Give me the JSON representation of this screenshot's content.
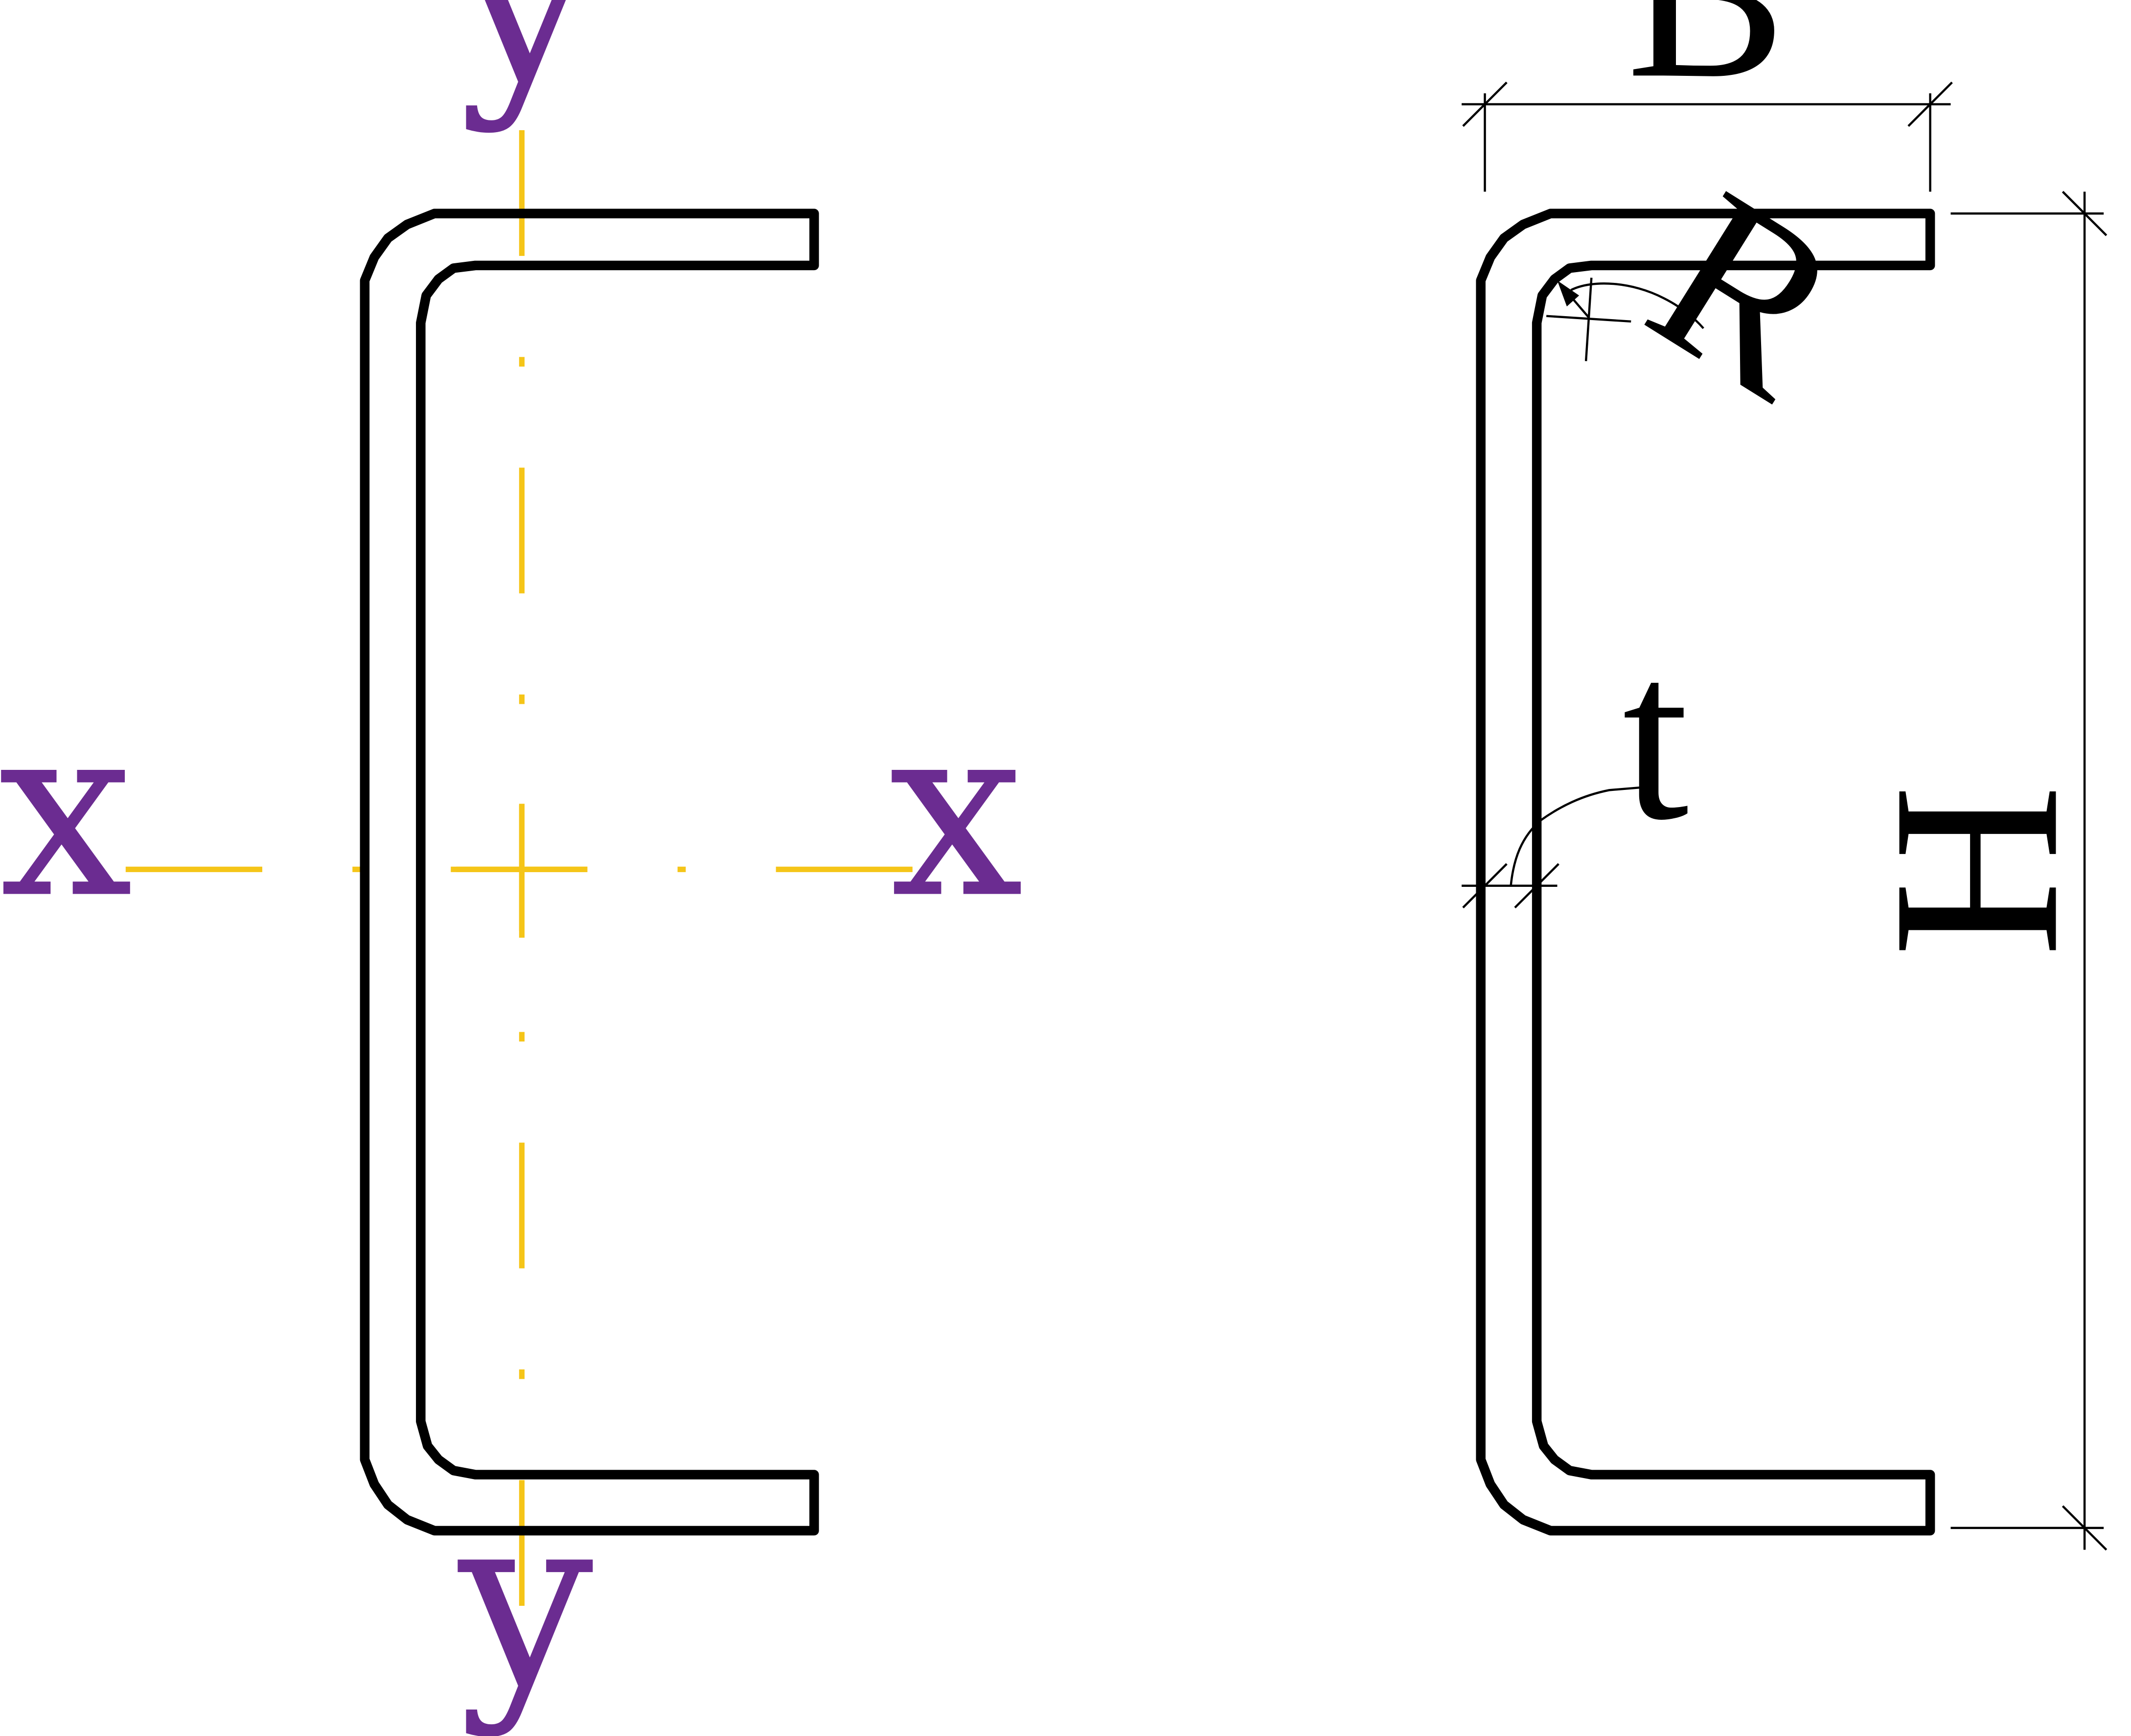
{
  "colors": {
    "axis": "#F5C518",
    "axis_label": "#6B2C91",
    "profile": "#000000",
    "dimension": "#000000",
    "background": "#FFFFFF"
  },
  "left_view": {
    "axis_labels": {
      "y_top": "y",
      "y_bottom": "y",
      "x_left": "x",
      "x_right": "x"
    }
  },
  "right_view": {
    "dimensions": {
      "width": "B",
      "height": "H",
      "radius": "R",
      "thickness": "t"
    }
  }
}
